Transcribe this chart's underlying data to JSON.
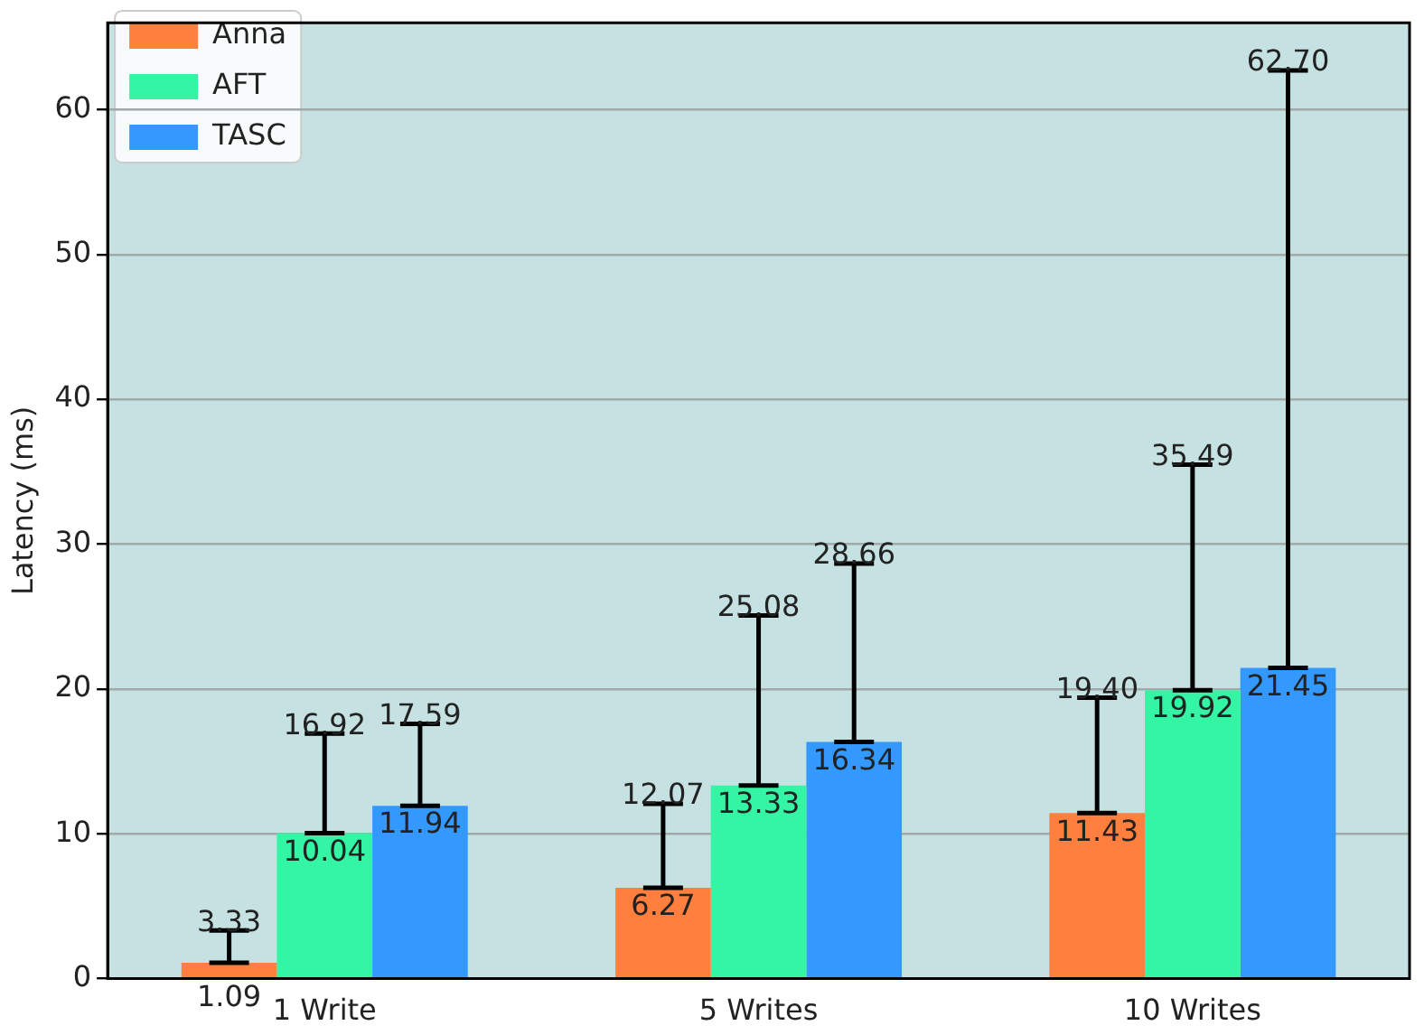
{
  "chart_data": {
    "type": "bar",
    "ylabel": "Latency (ms)",
    "categories": [
      "1 Write",
      "5 Writes",
      "10 Writes"
    ],
    "series": [
      {
        "name": "Anna",
        "color": "#ff7f3f",
        "values": [
          1.09,
          6.27,
          11.43
        ],
        "errors": [
          [
            1.09,
            3.33
          ],
          [
            6.27,
            12.07
          ],
          [
            11.43,
            19.4
          ]
        ]
      },
      {
        "name": "AFT",
        "color": "#33f5a4",
        "values": [
          10.04,
          13.33,
          19.92
        ],
        "errors": [
          [
            10.04,
            16.92
          ],
          [
            13.33,
            25.08
          ],
          [
            19.92,
            35.49
          ]
        ]
      },
      {
        "name": "TASC",
        "color": "#3399ff",
        "values": [
          11.94,
          16.34,
          21.45
        ],
        "errors": [
          [
            11.94,
            17.59
          ],
          [
            16.34,
            28.66
          ],
          [
            21.45,
            62.7
          ]
        ]
      }
    ],
    "annotations": [
      "3.33",
      "16.92",
      "17.59",
      "12.07",
      "25.08",
      "28.66",
      "19.40",
      "35.49",
      "62.70"
    ],
    "ylim": [
      0,
      66
    ],
    "yticks": [
      0,
      10,
      20,
      30,
      40,
      50,
      60
    ],
    "grid": "y",
    "legend": "top left",
    "data_labels": true
  }
}
